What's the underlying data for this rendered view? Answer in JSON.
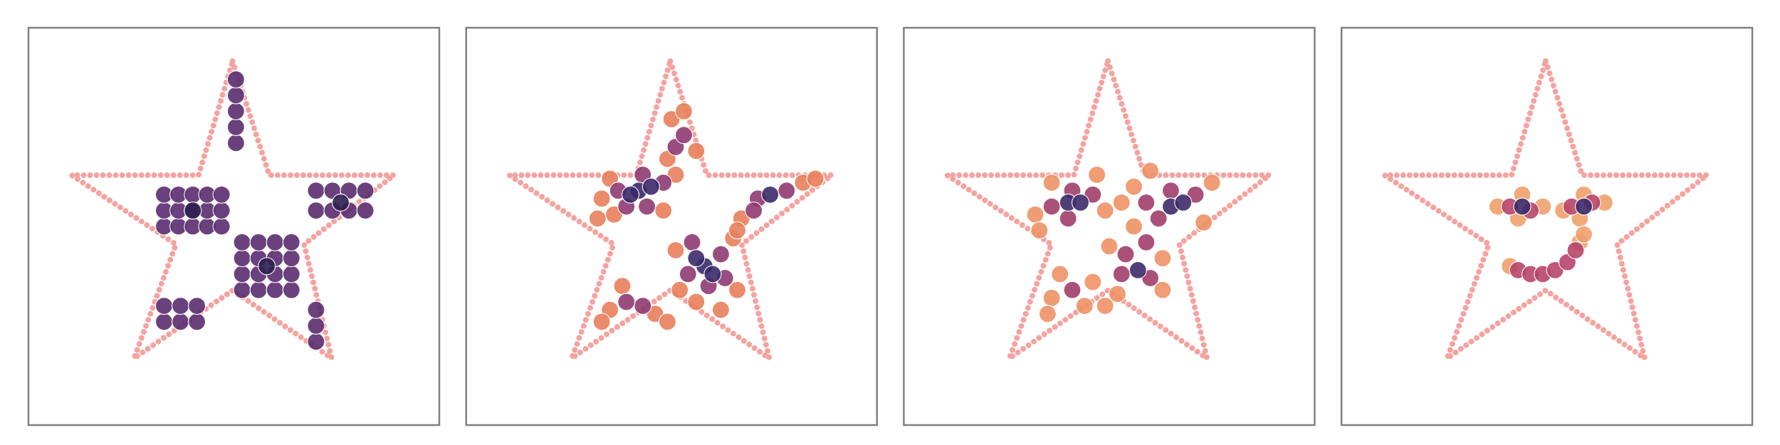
{
  "chart_data": [
    {
      "type": "scatter",
      "xlim": [
        0,
        10
      ],
      "ylim": [
        0,
        10
      ],
      "series": [
        {
          "color": "#5a2d70",
          "x": [
            3.3,
            3.65,
            4.0,
            4.35,
            4.7,
            3.3,
            3.65,
            4.0,
            4.35,
            4.7,
            3.3,
            3.65,
            4.0,
            4.35,
            4.7,
            5.2,
            5.6,
            6.0,
            6.4,
            5.2,
            5.6,
            6.0,
            6.4,
            5.2,
            5.6,
            6.0,
            6.4,
            5.2,
            5.6,
            6.0,
            6.4,
            7.0,
            7.4,
            7.8,
            8.2,
            7.0,
            7.4,
            7.8,
            8.2,
            5.05,
            5.05,
            5.05,
            5.05,
            5.05,
            3.3,
            3.7,
            4.1,
            3.3,
            3.7,
            4.1,
            7.0,
            7.0,
            7.0
          ],
          "y": [
            5.0,
            5.0,
            5.0,
            5.0,
            5.0,
            5.4,
            5.4,
            5.4,
            5.4,
            5.4,
            5.8,
            5.8,
            5.8,
            5.8,
            5.8,
            3.4,
            3.4,
            3.4,
            3.4,
            3.8,
            3.8,
            3.8,
            3.8,
            4.2,
            4.2,
            4.2,
            4.2,
            4.6,
            4.6,
            4.6,
            4.6,
            5.4,
            5.4,
            5.4,
            5.4,
            5.9,
            5.9,
            5.9,
            5.9,
            7.1,
            7.5,
            7.9,
            8.3,
            8.7,
            2.6,
            2.6,
            2.6,
            3.0,
            3.0,
            3.0,
            2.1,
            2.5,
            2.9
          ]
        },
        {
          "color": "#2e1f4f",
          "x": [
            4.0,
            5.8,
            7.6
          ],
          "y": [
            5.4,
            4.0,
            5.6
          ]
        }
      ]
    },
    {
      "type": "scatter",
      "xlim": [
        0,
        10
      ],
      "ylim": [
        0,
        10
      ],
      "series": [
        {
          "color": "#e8805c",
          "x": [
            3.3,
            3.5,
            5.1,
            3.6,
            4.8,
            3.2,
            5.1,
            6.6,
            5.6,
            6.5,
            5.2,
            6.2,
            8.2,
            6.7,
            6.6,
            8.5,
            5.0,
            5.3,
            4.9,
            5.6,
            3.5,
            4.6,
            3.3,
            3.8,
            4.9
          ],
          "y": [
            5.7,
            6.2,
            6.3,
            5.3,
            5.4,
            5.2,
            4.4,
            3.4,
            3.1,
            4.7,
            3.4,
            2.9,
            6.1,
            5.2,
            4.9,
            6.2,
            7.7,
            7.9,
            6.7,
            6.9,
            2.9,
            2.8,
            2.6,
            3.5,
            2.6
          ]
        },
        {
          "color": "#8f3b72",
          "x": [
            3.7,
            4.8,
            4.3,
            4.4,
            3.9,
            5.4,
            6.2,
            5.9,
            5.5,
            6.3,
            7.1,
            7.8,
            7.0,
            5.1,
            5.3,
            3.9,
            4.3
          ],
          "y": [
            5.9,
            6.1,
            6.3,
            5.5,
            5.5,
            3.8,
            4.3,
            3.5,
            4.6,
            3.7,
            5.7,
            5.9,
            5.4,
            7.0,
            7.3,
            3.1,
            3.0
          ]
        },
        {
          "color": "#3b2b6a",
          "x": [
            4.2,
            4.5,
            4.0,
            5.8,
            6.0,
            5.6,
            7.4
          ],
          "y": [
            5.9,
            6.0,
            5.8,
            4.0,
            3.8,
            4.2,
            5.8
          ]
        }
      ]
    },
    {
      "type": "scatter",
      "xlim": [
        0,
        10
      ],
      "ylim": [
        0,
        10
      ],
      "series": [
        {
          "color": "#ef9266",
          "x": [
            3.2,
            3.3,
            4.9,
            3.6,
            4.7,
            7.5,
            5.6,
            7.3,
            5.3,
            6.0,
            6.3,
            5.0,
            6.3,
            5.2,
            5.6,
            3.6,
            4.4,
            3.8,
            4.6,
            3.5,
            4.9
          ],
          "y": [
            5.3,
            4.9,
            5.4,
            6.1,
            6.3,
            6.1,
            6.0,
            5.1,
            5.6,
            6.4,
            3.4,
            4.5,
            4.2,
            3.3,
            5.0,
            3.2,
            3.0,
            3.8,
            3.6,
            2.8,
            3.0
          ]
        },
        {
          "color": "#a13f6c",
          "x": [
            3.6,
            4.6,
            4.1,
            4.0,
            6.2,
            7.1,
            6.5,
            5.9,
            5.4,
            6.0,
            5.3,
            5.9,
            4.1
          ],
          "y": [
            5.5,
            5.8,
            5.9,
            5.2,
            5.2,
            5.8,
            5.9,
            5.6,
            4.3,
            3.7,
            3.8,
            4.6,
            3.4
          ]
        },
        {
          "color": "#3d2c6b",
          "x": [
            4.0,
            4.3,
            6.5,
            6.8,
            5.7
          ],
          "y": [
            5.6,
            5.6,
            5.5,
            5.6,
            3.9
          ]
        }
      ]
    },
    {
      "type": "scatter",
      "xlim": [
        0,
        10
      ],
      "ylim": [
        0,
        10
      ],
      "series": [
        {
          "color": "#f0a06c",
          "x": [
            3.8,
            4.4,
            4.9,
            4.3,
            5.4,
            6.4,
            5.9,
            5.8,
            4.1,
            5.8,
            5.9
          ],
          "y": [
            5.5,
            5.8,
            5.5,
            5.2,
            5.4,
            5.6,
            5.8,
            5.2,
            4.0,
            4.6,
            4.8
          ]
        },
        {
          "color": "#b8456a",
          "x": [
            4.1,
            4.6,
            5.6,
            6.1,
            4.3,
            4.6,
            4.9,
            5.2,
            5.5,
            5.7
          ],
          "y": [
            5.5,
            5.4,
            5.5,
            5.6,
            3.9,
            3.8,
            3.8,
            3.9,
            4.1,
            4.4
          ]
        },
        {
          "color": "#3d2c6b",
          "x": [
            4.4,
            5.9
          ],
          "y": [
            5.5,
            5.5
          ]
        }
      ]
    }
  ]
}
